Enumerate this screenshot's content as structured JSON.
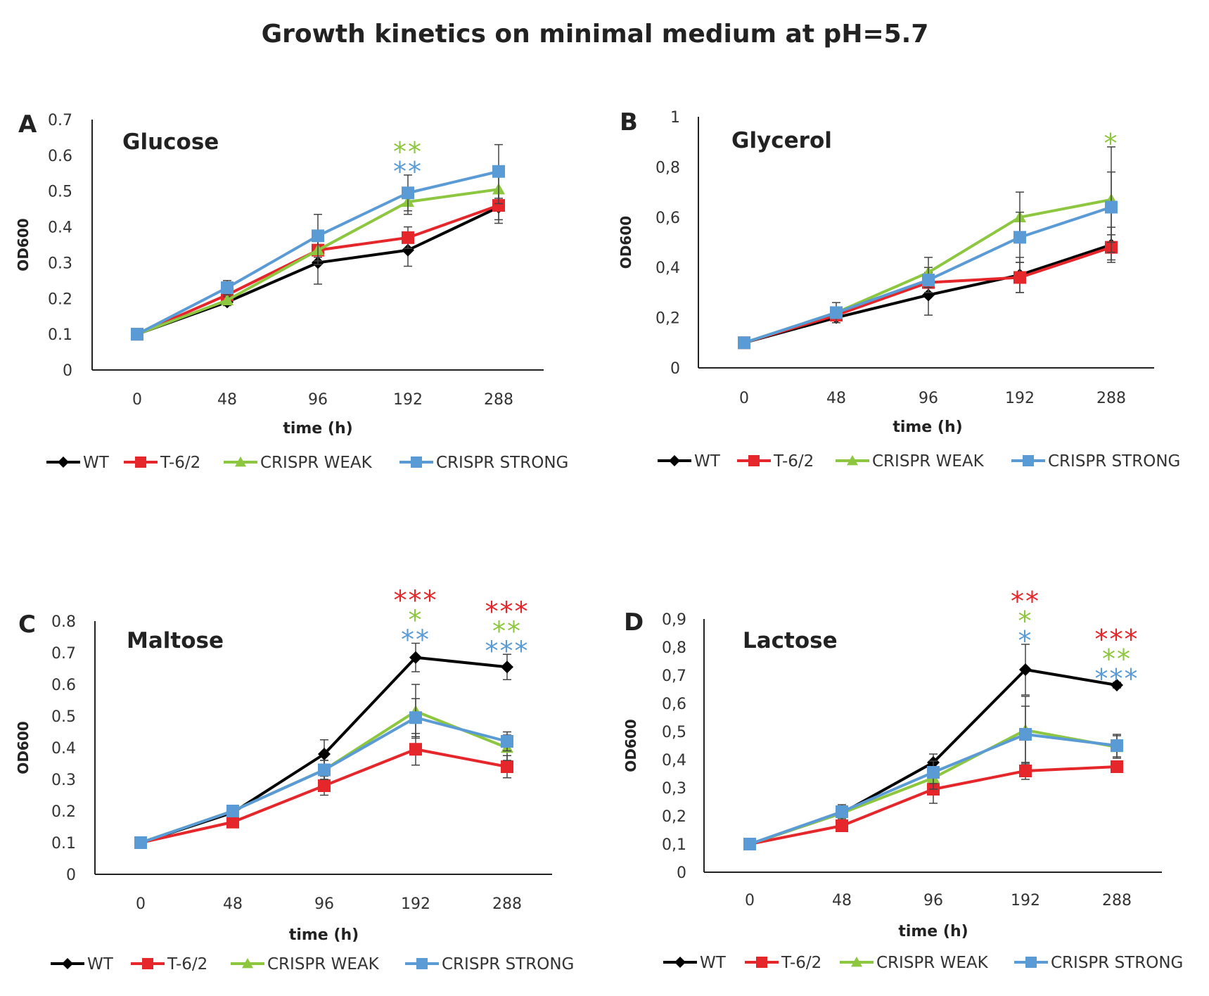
{
  "title": "Growth kinetics on minimal medium at pH=5.7",
  "colors": {
    "WT": "#000000",
    "T-6/2": "#e5262b",
    "CRISPR WEAK": "#8dc63f",
    "CRISPR STRONG": "#5b9bd5"
  },
  "chart_data": [
    {
      "type": "line",
      "panel": "A",
      "title": "Glucose",
      "xlabel": "time (h)",
      "ylabel": "OD600",
      "categories": [
        "0",
        "48",
        "96",
        "192",
        "288"
      ],
      "yticks": [
        "0",
        "0.1",
        "0.2",
        "0.3",
        "0.4",
        "0.5",
        "0.6",
        "0.7"
      ],
      "ylim": [
        0,
        0.7
      ],
      "series": [
        {
          "name": "WT",
          "marker": "diamond",
          "values": [
            0.1,
            0.19,
            0.3,
            0.335,
            0.455
          ],
          "errors": [
            0,
            0.01,
            0.06,
            0.045,
            0.045
          ]
        },
        {
          "name": "T-6/2",
          "marker": "square",
          "values": [
            0.1,
            0.21,
            0.335,
            0.37,
            0.46
          ],
          "errors": [
            0,
            0.01,
            0.03,
            0.03,
            0.04
          ]
        },
        {
          "name": "CRISPR WEAK",
          "marker": "triangle",
          "values": [
            0.1,
            0.195,
            0.335,
            0.47,
            0.505
          ],
          "errors": [
            0,
            0.01,
            0.04,
            0.035,
            0.04
          ]
        },
        {
          "name": "CRISPR STRONG",
          "marker": "square",
          "values": [
            0.1,
            0.23,
            0.375,
            0.495,
            0.555
          ],
          "errors": [
            0,
            0.02,
            0.06,
            0.05,
            0.075
          ]
        }
      ],
      "annotations": [
        {
          "category": "192",
          "lines": [
            {
              "text": "**",
              "series": "CRISPR WEAK"
            },
            {
              "text": "**",
              "series": "CRISPR STRONG"
            }
          ]
        }
      ],
      "legend": [
        "WT",
        "T-6/2",
        "CRISPR WEAK",
        "CRISPR STRONG"
      ]
    },
    {
      "type": "line",
      "panel": "B",
      "title": "Glycerol",
      "xlabel": "time (h)",
      "ylabel": "OD600",
      "categories": [
        "0",
        "48",
        "96",
        "192",
        "288"
      ],
      "yticks": [
        "0",
        "0,2",
        "0,4",
        "0,6",
        "0,8",
        "1"
      ],
      "ylim": [
        0,
        1
      ],
      "series": [
        {
          "name": "WT",
          "marker": "diamond",
          "values": [
            0.1,
            0.2,
            0.29,
            0.37,
            0.49
          ],
          "errors": [
            0,
            0.02,
            0.08,
            0.07,
            0.07
          ]
        },
        {
          "name": "T-6/2",
          "marker": "square",
          "values": [
            0.1,
            0.21,
            0.34,
            0.36,
            0.48
          ],
          "errors": [
            0,
            0.02,
            0.04,
            0.06,
            0.05
          ]
        },
        {
          "name": "CRISPR WEAK",
          "marker": "triangle",
          "values": [
            0.1,
            0.22,
            0.38,
            0.6,
            0.67
          ],
          "errors": [
            0,
            0.02,
            0.06,
            0.1,
            0.21
          ]
        },
        {
          "name": "CRISPR STRONG",
          "marker": "square",
          "values": [
            0.1,
            0.22,
            0.35,
            0.52,
            0.64
          ],
          "errors": [
            0,
            0.04,
            0.05,
            0.1,
            0.14
          ]
        }
      ],
      "annotations": [
        {
          "category": "288",
          "lines": [
            {
              "text": "*",
              "series": "CRISPR WEAK"
            }
          ]
        }
      ],
      "legend": [
        "WT",
        "T-6/2",
        "CRISPR WEAK",
        "CRISPR STRONG"
      ]
    },
    {
      "type": "line",
      "panel": "C",
      "title": "Maltose",
      "xlabel": "time (h)",
      "ylabel": "OD600",
      "categories": [
        "0",
        "48",
        "96",
        "192",
        "288"
      ],
      "yticks": [
        "0",
        "0.1",
        "0.2",
        "0.3",
        "0.4",
        "0.5",
        "0.6",
        "0.7",
        "0.8"
      ],
      "ylim": [
        0,
        0.8
      ],
      "series": [
        {
          "name": "WT",
          "marker": "diamond",
          "values": [
            0.1,
            0.195,
            0.38,
            0.685,
            0.655
          ],
          "errors": [
            0,
            0.01,
            0.045,
            0.045,
            0.04
          ]
        },
        {
          "name": "T-6/2",
          "marker": "square",
          "values": [
            0.1,
            0.165,
            0.28,
            0.395,
            0.34
          ],
          "errors": [
            0,
            0.01,
            0.03,
            0.05,
            0.035
          ]
        },
        {
          "name": "CRISPR WEAK",
          "marker": "triangle",
          "values": [
            0.1,
            0.2,
            0.33,
            0.515,
            0.4
          ],
          "errors": [
            0,
            0.01,
            0.03,
            0.085,
            0.04
          ]
        },
        {
          "name": "CRISPR STRONG",
          "marker": "square",
          "values": [
            0.1,
            0.2,
            0.33,
            0.495,
            0.42
          ],
          "errors": [
            0,
            0.01,
            0.03,
            0.06,
            0.03
          ]
        }
      ],
      "annotations": [
        {
          "category": "192",
          "lines": [
            {
              "text": "***",
              "series": "T-6/2"
            },
            {
              "text": "*",
              "series": "CRISPR WEAK"
            },
            {
              "text": "**",
              "series": "CRISPR STRONG"
            }
          ]
        },
        {
          "category": "288",
          "lines": [
            {
              "text": "***",
              "series": "T-6/2"
            },
            {
              "text": "**",
              "series": "CRISPR WEAK"
            },
            {
              "text": "***",
              "series": "CRISPR STRONG"
            }
          ]
        }
      ],
      "legend": [
        "WT",
        "T-6/2",
        "CRISPR WEAK",
        "CRISPR STRONG"
      ]
    },
    {
      "type": "line",
      "panel": "D",
      "title": "Lactose",
      "xlabel": "time (h)",
      "ylabel": "OD600",
      "categories": [
        "0",
        "48",
        "96",
        "192",
        "288"
      ],
      "yticks": [
        "0",
        "0,1",
        "0,2",
        "0,3",
        "0,4",
        "0,5",
        "0,6",
        "0,7",
        "0,8",
        "0,9"
      ],
      "ylim": [
        0,
        0.9
      ],
      "series": [
        {
          "name": "WT",
          "marker": "diamond",
          "values": [
            0.1,
            0.21,
            0.39,
            0.72,
            0.665
          ],
          "errors": [
            0,
            0.03,
            0.03,
            0.09,
            0.01
          ]
        },
        {
          "name": "T-6/2",
          "marker": "square",
          "values": [
            0.1,
            0.165,
            0.295,
            0.36,
            0.375
          ],
          "errors": [
            0,
            0.01,
            0.05,
            0.03,
            0.01
          ]
        },
        {
          "name": "CRISPR WEAK",
          "marker": "triangle",
          "values": [
            0.1,
            0.21,
            0.335,
            0.505,
            0.445
          ],
          "errors": [
            0,
            0.02,
            0.04,
            0.12,
            0.04
          ]
        },
        {
          "name": "CRISPR STRONG",
          "marker": "square",
          "values": [
            0.1,
            0.215,
            0.355,
            0.49,
            0.45
          ],
          "errors": [
            0,
            0.02,
            0.04,
            0.1,
            0.04
          ]
        }
      ],
      "annotations": [
        {
          "category": "192",
          "lines": [
            {
              "text": "**",
              "series": "T-6/2"
            },
            {
              "text": "*",
              "series": "CRISPR WEAK"
            },
            {
              "text": "*",
              "series": "CRISPR STRONG"
            }
          ]
        },
        {
          "category": "288",
          "lines": [
            {
              "text": "***",
              "series": "T-6/2"
            },
            {
              "text": "**",
              "series": "CRISPR WEAK"
            },
            {
              "text": "***",
              "series": "CRISPR STRONG"
            }
          ]
        }
      ],
      "legend": [
        "WT",
        "T-6/2",
        "CRISPR WEAK",
        "CRISPR STRONG"
      ]
    }
  ]
}
